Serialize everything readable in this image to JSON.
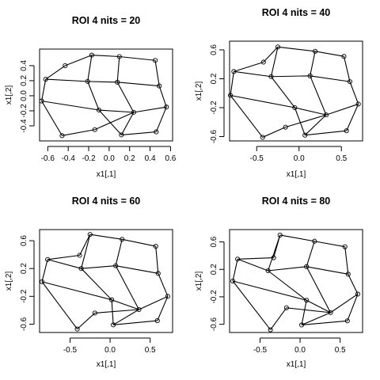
{
  "chart_data": [
    {
      "type": "scatter",
      "title": "ROI 4 nits =  20",
      "xlabel": "x1[,1]",
      "ylabel": "x1[,2]",
      "xlim": [
        -0.68,
        0.62
      ],
      "ylim": [
        -0.6,
        0.62
      ],
      "xticks": [
        -0.6,
        -0.4,
        -0.2,
        0.0,
        0.2,
        0.4,
        0.6
      ],
      "xtick_labels": [
        "-0.6",
        "-0.4",
        "-0.2",
        "0.0",
        "0.2",
        "0.4",
        "0.6"
      ],
      "yticks": [
        -0.4,
        -0.2,
        0.0,
        0.2,
        0.4
      ],
      "ytick_labels": [
        "-0.4",
        "-0.2",
        "0.0",
        "0.2",
        "0.4"
      ],
      "points": [
        [
          -0.62,
          0.22
        ],
        [
          -0.43,
          0.4
        ],
        [
          -0.17,
          0.54
        ],
        [
          0.1,
          0.52
        ],
        [
          0.45,
          0.47
        ],
        [
          -0.66,
          -0.07
        ],
        [
          -0.21,
          0.19
        ],
        [
          0.08,
          0.18
        ],
        [
          0.49,
          0.13
        ],
        [
          -0.1,
          -0.19
        ],
        [
          0.24,
          -0.22
        ],
        [
          0.56,
          -0.15
        ],
        [
          -0.46,
          -0.53
        ],
        [
          -0.14,
          -0.45
        ],
        [
          0.12,
          -0.52
        ],
        [
          0.46,
          -0.48
        ]
      ],
      "edges": [
        [
          0,
          1
        ],
        [
          1,
          2
        ],
        [
          2,
          3
        ],
        [
          3,
          4
        ],
        [
          0,
          6
        ],
        [
          6,
          7
        ],
        [
          7,
          8
        ],
        [
          2,
          6
        ],
        [
          3,
          7
        ],
        [
          4,
          8
        ],
        [
          0,
          5
        ],
        [
          5,
          9
        ],
        [
          9,
          10
        ],
        [
          10,
          11
        ],
        [
          8,
          11
        ],
        [
          6,
          9
        ],
        [
          7,
          10
        ],
        [
          5,
          12
        ],
        [
          12,
          13
        ],
        [
          13,
          10
        ],
        [
          10,
          14
        ],
        [
          14,
          15
        ],
        [
          15,
          11
        ],
        [
          9,
          14
        ]
      ]
    },
    {
      "type": "scatter",
      "title": "ROI 4 nits =  40",
      "xlabel": "x1[,1]",
      "ylabel": "x1[,2]",
      "xlim": [
        -0.82,
        0.75
      ],
      "ylim": [
        -0.66,
        0.72
      ],
      "xticks": [
        -0.5,
        0.0,
        0.5
      ],
      "xtick_labels": [
        "-0.5",
        "0.0",
        "0.5"
      ],
      "yticks": [
        -0.6,
        -0.2,
        0.2,
        0.6
      ],
      "ytick_labels": [
        "-0.6",
        "-0.2",
        "0.2",
        "0.6"
      ],
      "points": [
        [
          -0.77,
          0.3
        ],
        [
          -0.42,
          0.43
        ],
        [
          -0.25,
          0.64
        ],
        [
          0.19,
          0.58
        ],
        [
          0.53,
          0.51
        ],
        [
          -0.81,
          -0.03
        ],
        [
          -0.33,
          0.23
        ],
        [
          0.13,
          0.24
        ],
        [
          0.6,
          0.16
        ],
        [
          -0.05,
          -0.2
        ],
        [
          0.32,
          -0.3
        ],
        [
          0.7,
          -0.15
        ],
        [
          -0.43,
          -0.61
        ],
        [
          -0.16,
          -0.47
        ],
        [
          0.07,
          -0.58
        ],
        [
          0.56,
          -0.52
        ]
      ],
      "edges": [
        [
          0,
          1
        ],
        [
          1,
          2
        ],
        [
          2,
          3
        ],
        [
          3,
          4
        ],
        [
          0,
          6
        ],
        [
          6,
          7
        ],
        [
          7,
          8
        ],
        [
          2,
          6
        ],
        [
          3,
          7
        ],
        [
          4,
          8
        ],
        [
          0,
          5
        ],
        [
          5,
          9
        ],
        [
          9,
          10
        ],
        [
          10,
          11
        ],
        [
          8,
          11
        ],
        [
          6,
          9
        ],
        [
          7,
          10
        ],
        [
          5,
          12
        ],
        [
          12,
          13
        ],
        [
          13,
          10
        ],
        [
          10,
          14
        ],
        [
          14,
          15
        ],
        [
          15,
          11
        ],
        [
          9,
          14
        ]
      ]
    },
    {
      "type": "scatter",
      "title": "ROI 4 nits =  60",
      "xlabel": "x1[,1]",
      "ylabel": "x1[,2]",
      "xlim": [
        -0.88,
        0.78
      ],
      "ylim": [
        -0.72,
        0.76
      ],
      "xticks": [
        -0.5,
        0.0,
        0.5
      ],
      "xtick_labels": [
        "-0.5",
        "0.0",
        "0.5"
      ],
      "yticks": [
        -0.6,
        -0.2,
        0.2,
        0.6
      ],
      "ytick_labels": [
        "-0.6",
        "-0.2",
        "0.2",
        "0.6"
      ],
      "points": [
        [
          -0.78,
          0.33
        ],
        [
          -0.38,
          0.39
        ],
        [
          -0.25,
          0.69
        ],
        [
          0.15,
          0.62
        ],
        [
          0.57,
          0.52
        ],
        [
          -0.85,
          0.01
        ],
        [
          -0.36,
          0.2
        ],
        [
          0.07,
          0.24
        ],
        [
          0.6,
          0.13
        ],
        [
          0.02,
          -0.25
        ],
        [
          0.36,
          -0.39
        ],
        [
          0.72,
          -0.2
        ],
        [
          -0.41,
          -0.67
        ],
        [
          -0.19,
          -0.44
        ],
        [
          0.04,
          -0.61
        ],
        [
          0.59,
          -0.55
        ]
      ],
      "edges": [
        [
          0,
          1
        ],
        [
          1,
          2
        ],
        [
          2,
          3
        ],
        [
          3,
          4
        ],
        [
          0,
          6
        ],
        [
          6,
          7
        ],
        [
          7,
          8
        ],
        [
          2,
          6
        ],
        [
          3,
          7
        ],
        [
          4,
          8
        ],
        [
          0,
          5
        ],
        [
          5,
          9
        ],
        [
          9,
          10
        ],
        [
          10,
          11
        ],
        [
          8,
          11
        ],
        [
          6,
          9
        ],
        [
          7,
          10
        ],
        [
          5,
          12
        ],
        [
          12,
          13
        ],
        [
          13,
          10
        ],
        [
          10,
          14
        ],
        [
          14,
          15
        ],
        [
          15,
          11
        ],
        [
          9,
          14
        ]
      ]
    },
    {
      "type": "scatter",
      "title": "ROI 4 nits =  80",
      "xlabel": "x1[,1]",
      "ylabel": "x1[,2]",
      "xlim": [
        -0.88,
        0.78
      ],
      "ylim": [
        -0.72,
        0.78
      ],
      "xticks": [
        -0.5,
        0.0,
        0.5
      ],
      "xtick_labels": [
        "-0.5",
        "0.0",
        "0.5"
      ],
      "yticks": [
        -0.6,
        -0.2,
        0.2,
        0.6
      ],
      "ytick_labels": [
        "-0.6",
        "-0.2",
        "0.2",
        "0.6"
      ],
      "points": [
        [
          -0.78,
          0.35
        ],
        [
          -0.33,
          0.37
        ],
        [
          -0.25,
          0.7
        ],
        [
          0.18,
          0.61
        ],
        [
          0.56,
          0.53
        ],
        [
          -0.84,
          0.03
        ],
        [
          -0.4,
          0.18
        ],
        [
          0.08,
          0.24
        ],
        [
          0.6,
          0.13
        ],
        [
          0.08,
          -0.25
        ],
        [
          0.38,
          -0.43
        ],
        [
          0.72,
          -0.16
        ],
        [
          -0.37,
          -0.68
        ],
        [
          -0.17,
          -0.36
        ],
        [
          0.02,
          -0.61
        ],
        [
          0.59,
          -0.55
        ]
      ],
      "edges": [
        [
          0,
          1
        ],
        [
          1,
          2
        ],
        [
          2,
          3
        ],
        [
          3,
          4
        ],
        [
          0,
          6
        ],
        [
          6,
          7
        ],
        [
          7,
          8
        ],
        [
          2,
          6
        ],
        [
          3,
          7
        ],
        [
          4,
          8
        ],
        [
          0,
          5
        ],
        [
          5,
          9
        ],
        [
          9,
          10
        ],
        [
          10,
          11
        ],
        [
          8,
          11
        ],
        [
          6,
          9
        ],
        [
          7,
          10
        ],
        [
          5,
          12
        ],
        [
          12,
          13
        ],
        [
          13,
          10
        ],
        [
          10,
          14
        ],
        [
          14,
          15
        ],
        [
          15,
          11
        ],
        [
          9,
          14
        ]
      ]
    }
  ]
}
